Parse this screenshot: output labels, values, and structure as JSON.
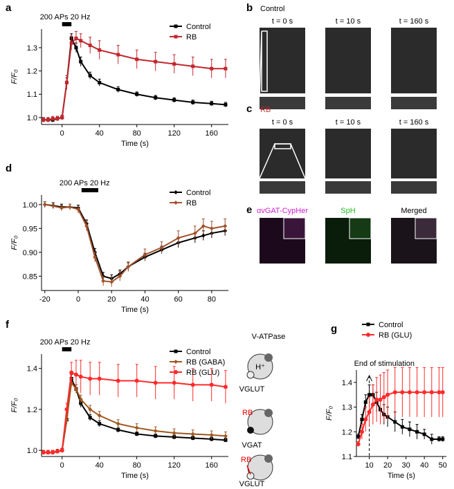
{
  "chart_data": [
    {
      "type": "line",
      "panel": "a",
      "annotation": "200 APs 20 Hz",
      "stimulus_x": [
        0,
        10
      ],
      "xlabel": "Time (s)",
      "ylabel": "F/F₀",
      "xlim": [
        -22,
        178
      ],
      "ylim": [
        0.97,
        1.38
      ],
      "xticks": [
        0,
        40,
        80,
        120,
        160
      ],
      "yticks": [
        {
          "value": 1.0,
          "label": "1.0"
        },
        1.1,
        1.2,
        1.3
      ],
      "legend": "upper right",
      "x": [
        -20,
        -15,
        -10,
        -5,
        0,
        5,
        10,
        15,
        20,
        30,
        40,
        60,
        80,
        100,
        120,
        140,
        160,
        175
      ],
      "series": [
        {
          "name": "Control",
          "color": "#000000",
          "marker": "square",
          "values": [
            0.99,
            0.99,
            0.99,
            0.995,
            1.0,
            1.15,
            1.34,
            1.3,
            1.24,
            1.18,
            1.15,
            1.12,
            1.1,
            1.085,
            1.075,
            1.065,
            1.06,
            1.055
          ],
          "errors": [
            0.01,
            0.01,
            0.01,
            0.01,
            0.01,
            0.02,
            0.02,
            0.02,
            0.02,
            0.015,
            0.015,
            0.012,
            0.01,
            0.01,
            0.01,
            0.01,
            0.01,
            0.01
          ]
        },
        {
          "name": "RB",
          "color": "#c1272d",
          "marker": "square",
          "values": [
            0.99,
            0.99,
            0.995,
            0.995,
            1.0,
            1.15,
            1.32,
            1.34,
            1.33,
            1.31,
            1.29,
            1.27,
            1.25,
            1.24,
            1.23,
            1.22,
            1.21,
            1.21
          ],
          "errors": [
            0.01,
            0.01,
            0.01,
            0.01,
            0.01,
            0.03,
            0.03,
            0.03,
            0.03,
            0.035,
            0.04,
            0.04,
            0.04,
            0.04,
            0.04,
            0.04,
            0.04,
            0.04
          ]
        }
      ]
    },
    {
      "type": "line",
      "panel": "d",
      "annotation": "200 APs 20 Hz",
      "stimulus_x": [
        2,
        12
      ],
      "xlabel": "Time (s)",
      "ylabel": "F/F₀",
      "xlim": [
        -22,
        90
      ],
      "ylim": [
        0.82,
        1.02
      ],
      "xticks": [
        -20,
        0,
        20,
        40,
        60,
        80
      ],
      "yticks": [
        0.85,
        {
          "value": 0.9,
          "label": "0.90"
        },
        0.95,
        {
          "value": 1.0,
          "label": "1.00"
        }
      ],
      "legend": "upper right",
      "x": [
        -20,
        -15,
        -10,
        -5,
        0,
        5,
        10,
        15,
        20,
        25,
        30,
        40,
        50,
        60,
        70,
        75,
        80,
        88
      ],
      "series": [
        {
          "name": "Control",
          "color": "#000000",
          "marker": "diamond",
          "values": [
            1.0,
            0.998,
            0.995,
            0.995,
            0.993,
            0.96,
            0.9,
            0.85,
            0.845,
            0.855,
            0.87,
            0.89,
            0.905,
            0.92,
            0.93,
            0.935,
            0.94,
            0.945
          ],
          "errors": [
            0.006,
            0.006,
            0.006,
            0.006,
            0.006,
            0.008,
            0.008,
            0.008,
            0.008,
            0.008,
            0.008,
            0.008,
            0.008,
            0.01,
            0.01,
            0.01,
            0.01,
            0.01
          ]
        },
        {
          "name": "RB",
          "color": "#a0522d",
          "marker": "diamond",
          "values": [
            1.0,
            0.997,
            0.993,
            0.995,
            0.99,
            0.955,
            0.89,
            0.84,
            0.838,
            0.85,
            0.87,
            0.895,
            0.91,
            0.93,
            0.94,
            0.955,
            0.95,
            0.955
          ],
          "errors": [
            0.006,
            0.006,
            0.006,
            0.006,
            0.008,
            0.01,
            0.01,
            0.01,
            0.01,
            0.01,
            0.01,
            0.012,
            0.012,
            0.015,
            0.015,
            0.015,
            0.015,
            0.015
          ]
        }
      ]
    },
    {
      "type": "line",
      "panel": "f",
      "annotation": "200 APs 20 Hz",
      "stimulus_x": [
        0,
        10
      ],
      "xlabel": "Time (s)",
      "ylabel": "F/F₀",
      "xlim": [
        -22,
        178
      ],
      "ylim": [
        0.97,
        1.47
      ],
      "xticks": [
        0,
        40,
        80,
        120,
        160
      ],
      "yticks": [
        {
          "value": 1.0,
          "label": "1.0"
        },
        1.2,
        1.4
      ],
      "legend": "upper right",
      "x": [
        -20,
        -15,
        -10,
        -5,
        0,
        5,
        10,
        15,
        20,
        30,
        40,
        60,
        80,
        100,
        120,
        140,
        160,
        175
      ],
      "series": [
        {
          "name": "Control",
          "color": "#000000",
          "marker": "square",
          "values": [
            0.99,
            0.99,
            0.99,
            0.995,
            1.0,
            1.15,
            1.35,
            1.3,
            1.23,
            1.16,
            1.13,
            1.1,
            1.08,
            1.07,
            1.065,
            1.06,
            1.055,
            1.05
          ],
          "errors": [
            0.01,
            0.01,
            0.01,
            0.01,
            0.01,
            0.02,
            0.02,
            0.02,
            0.02,
            0.015,
            0.015,
            0.012,
            0.01,
            0.01,
            0.01,
            0.01,
            0.01,
            0.01
          ]
        },
        {
          "name": "RB (GABA)",
          "color": "#a0561d",
          "marker": "diamond",
          "values": [
            0.99,
            0.99,
            0.99,
            0.995,
            1.0,
            1.15,
            1.33,
            1.3,
            1.25,
            1.2,
            1.17,
            1.13,
            1.11,
            1.095,
            1.085,
            1.08,
            1.075,
            1.07
          ],
          "errors": [
            0.01,
            0.01,
            0.01,
            0.01,
            0.01,
            0.02,
            0.02,
            0.02,
            0.02,
            0.02,
            0.02,
            0.02,
            0.02,
            0.02,
            0.02,
            0.02,
            0.02,
            0.02
          ]
        },
        {
          "name": "RB (GLU)",
          "color": "#ff2a2a",
          "marker": "circle",
          "values": [
            0.99,
            0.99,
            0.99,
            0.995,
            1.0,
            1.2,
            1.38,
            1.37,
            1.36,
            1.35,
            1.35,
            1.34,
            1.34,
            1.33,
            1.33,
            1.32,
            1.32,
            1.31
          ],
          "errors": [
            0.01,
            0.01,
            0.01,
            0.01,
            0.01,
            0.03,
            0.05,
            0.07,
            0.08,
            0.08,
            0.08,
            0.08,
            0.08,
            0.08,
            0.08,
            0.08,
            0.08,
            0.08
          ]
        }
      ]
    },
    {
      "type": "line",
      "panel": "g",
      "annotation": "End of stimulation",
      "vline": 10,
      "xlabel": "Time (s)",
      "ylabel": "F/F₀",
      "xlim": [
        3,
        52
      ],
      "ylim": [
        1.1,
        1.45
      ],
      "xticks": [
        10,
        20,
        30,
        40,
        50
      ],
      "yticks": [
        1.1,
        1.2,
        1.3,
        1.4
      ],
      "legend": "top",
      "x": [
        4,
        6,
        8,
        10,
        12,
        14,
        16,
        18,
        20,
        24,
        28,
        32,
        36,
        40,
        44,
        48,
        50
      ],
      "series": [
        {
          "name": "Control",
          "color": "#000000",
          "marker": "square",
          "values": [
            1.18,
            1.25,
            1.32,
            1.35,
            1.35,
            1.32,
            1.29,
            1.27,
            1.26,
            1.24,
            1.22,
            1.21,
            1.2,
            1.19,
            1.17,
            1.17,
            1.17
          ],
          "errors": [
            0.01,
            0.02,
            0.03,
            0.04,
            0.04,
            0.04,
            0.04,
            0.04,
            0.04,
            0.04,
            0.03,
            0.03,
            0.03,
            0.02,
            0.02,
            0.01,
            0.01
          ]
        },
        {
          "name": "RB (GLU)",
          "color": "#ff2a2a",
          "marker": "circle",
          "values": [
            1.15,
            1.2,
            1.25,
            1.28,
            1.31,
            1.33,
            1.33,
            1.34,
            1.35,
            1.36,
            1.36,
            1.36,
            1.36,
            1.36,
            1.36,
            1.36,
            1.36
          ],
          "errors": [
            0.01,
            0.03,
            0.05,
            0.06,
            0.08,
            0.09,
            0.1,
            0.1,
            0.1,
            0.1,
            0.1,
            0.1,
            0.1,
            0.1,
            0.1,
            0.1,
            0.1
          ]
        }
      ]
    }
  ],
  "image_panels": [
    {
      "panel": "b",
      "title": "Control",
      "frames": [
        "t = 0 s",
        "t = 10 s",
        "t = 160 s"
      ]
    },
    {
      "panel": "c",
      "title": "RB",
      "frames": [
        "t = 0 s",
        "t = 10 s",
        "t = 160 s"
      ]
    },
    {
      "panel": "e",
      "frames": [
        "αvGAT-CypHer",
        "SpH",
        "Merged"
      ]
    }
  ],
  "schematic": {
    "labels": [
      "V-ATPase",
      "H⁺",
      "VGLUT",
      "RB",
      "VGAT",
      "RB",
      "VGLUT"
    ]
  }
}
